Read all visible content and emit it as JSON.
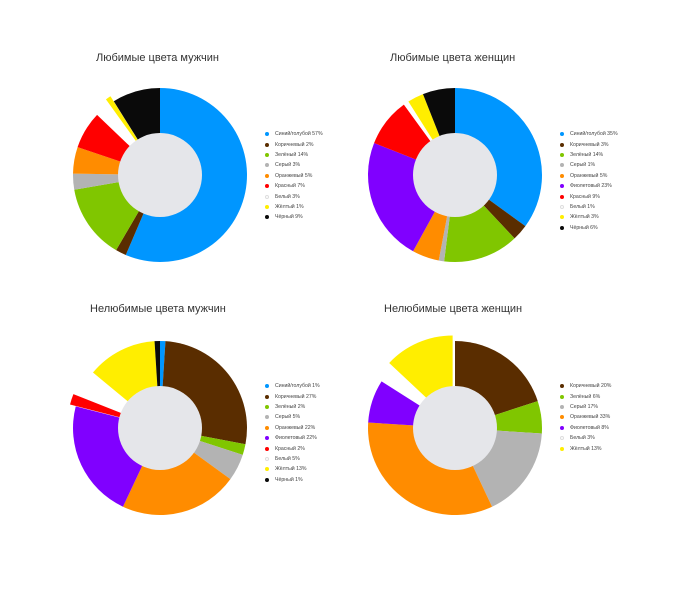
{
  "chart_data": [
    {
      "type": "pie",
      "title": "Любимые цвета мужчин",
      "categories": [
        "Синий/голубой",
        "Коричневый",
        "Зелёный",
        "Серый",
        "Оранжевый",
        "Красный",
        "Белый",
        "Жёлтый",
        "Чёрный"
      ],
      "values": [
        57,
        2,
        14,
        3,
        5,
        7,
        3,
        1,
        9
      ],
      "legend_labels": [
        "Синий/голубой 57%",
        "Коричневый 2%",
        "Зелёный 14%",
        "Серый 3%",
        "Оранжевый 5%",
        "Красный 7%",
        "Белый 3%",
        "Жёлтый 1%",
        "Чёрный 9%"
      ],
      "colors": [
        "#0096ff",
        "#5a2d00",
        "#80c600",
        "#b3b3b3",
        "#ff8c00",
        "#ff0000",
        "#ffffff",
        "#ffee00",
        "#0a0a0a"
      ],
      "legend": "right"
    },
    {
      "type": "pie",
      "title": "Любимые цвета женщин",
      "categories": [
        "Синий/голубой",
        "Коричневый",
        "Зелёный",
        "Серый",
        "Оранжевый",
        "Фиолетовый",
        "Красный",
        "Белый",
        "Жёлтый",
        "Чёрный"
      ],
      "values": [
        35,
        3,
        14,
        1,
        5,
        23,
        9,
        1,
        3,
        6
      ],
      "legend_labels": [
        "Синий/голубой 35%",
        "Коричневый 3%",
        "Зелёный 14%",
        "Серый 1%",
        "Оранжевый 5%",
        "Фиолетовый 23%",
        "Красный 9%",
        "Белый 1%",
        "Жёлтый 3%",
        "Чёрный 6%"
      ],
      "colors": [
        "#0096ff",
        "#5a2d00",
        "#80c600",
        "#b3b3b3",
        "#ff8c00",
        "#8000ff",
        "#ff0000",
        "#ffffff",
        "#ffee00",
        "#0a0a0a"
      ],
      "legend": "right"
    },
    {
      "type": "pie",
      "title": "Нелюбимые цвета мужчин",
      "categories": [
        "Синий/голубой",
        "Коричневый",
        "Зелёный",
        "Серый",
        "Оранжевый",
        "Фиолетовый",
        "Красный",
        "Белый",
        "Жёлтый",
        "Чёрный"
      ],
      "values": [
        1,
        27,
        2,
        5,
        22,
        22,
        2,
        5,
        13,
        1
      ],
      "legend_labels": [
        "Синий/голубой 1%",
        "Коричневый 27%",
        "Зелёный 2%",
        "Серый 5%",
        "Оранжевый 22%",
        "Фиолетовый 22%",
        "Красный 2%",
        "Белый 5%",
        "Жёлтый 13%",
        "Чёрный 1%"
      ],
      "colors": [
        "#0096ff",
        "#5a2d00",
        "#80c600",
        "#b3b3b3",
        "#ff8c00",
        "#8000ff",
        "#ff0000",
        "#ffffff",
        "#ffee00",
        "#0a0a0a"
      ],
      "legend": "right"
    },
    {
      "type": "pie",
      "title": "Нелюбимые цвета женщин",
      "categories": [
        "Коричневый",
        "Зелёный",
        "Серый",
        "Оранжевый",
        "Фиолетовый",
        "Белый",
        "Жёлтый"
      ],
      "values": [
        20,
        6,
        17,
        33,
        8,
        3,
        13
      ],
      "legend_labels": [
        "Коричневый 20%",
        "Зелёный 6%",
        "Серый 17%",
        "Оранжевый 33%",
        "Фиолетовый 8%",
        "Белый 3%",
        "Жёлтый 13%"
      ],
      "colors": [
        "#5a2d00",
        "#80c600",
        "#b3b3b3",
        "#ff8c00",
        "#8000ff",
        "#ffffff",
        "#ffee00"
      ],
      "legend": "right"
    }
  ]
}
